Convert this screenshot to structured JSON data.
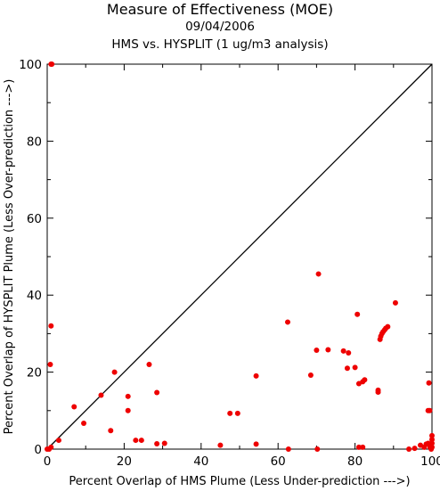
{
  "chart_data": {
    "type": "scatter",
    "title": "Measure of Effectiveness (MOE)",
    "subtitle": "09/04/2006",
    "subtitle2": "HMS vs. HYSPLIT  (1 ug/m3 analysis)",
    "xlabel": "Percent Overlap of HMS Plume (Less Under-prediction --->)",
    "ylabel": "Percent Overlap of HYSPLIT Plume (Less Over-prediction --->)",
    "xlim": [
      0,
      100
    ],
    "ylim": [
      0,
      100
    ],
    "xticks": [
      "0",
      "20",
      "40",
      "60",
      "80",
      "100"
    ],
    "yticks": [
      "0",
      "20",
      "40",
      "60",
      "80",
      "100"
    ],
    "grid": false,
    "reference_line": "y = x",
    "point_color": "#ee0000",
    "series": [
      {
        "points": [
          [
            1.0,
            100.0
          ],
          [
            1.2,
            100.0
          ],
          [
            1.0,
            32.0
          ],
          [
            0.8,
            22.0
          ],
          [
            0.0,
            0.0
          ],
          [
            0.5,
            0.0
          ],
          [
            1.0,
            0.5
          ],
          [
            3.0,
            2.3
          ],
          [
            7.0,
            11.0
          ],
          [
            9.5,
            6.7
          ],
          [
            14.0,
            14.0
          ],
          [
            16.5,
            4.8
          ],
          [
            17.5,
            20.0
          ],
          [
            21.0,
            13.7
          ],
          [
            21.0,
            10.0
          ],
          [
            23.0,
            2.3
          ],
          [
            24.5,
            2.3
          ],
          [
            26.5,
            22.0
          ],
          [
            28.5,
            14.7
          ],
          [
            28.5,
            1.4
          ],
          [
            30.5,
            1.5
          ],
          [
            45.0,
            1.0
          ],
          [
            47.5,
            9.3
          ],
          [
            49.5,
            9.3
          ],
          [
            54.3,
            19.0
          ],
          [
            54.3,
            1.3
          ],
          [
            62.5,
            33.0
          ],
          [
            62.7,
            0.0
          ],
          [
            68.5,
            19.2
          ],
          [
            70.0,
            25.7
          ],
          [
            70.2,
            0.0
          ],
          [
            70.5,
            45.5
          ],
          [
            73.0,
            25.8
          ],
          [
            77.0,
            25.5
          ],
          [
            78.0,
            21.0
          ],
          [
            78.3,
            25.0
          ],
          [
            80.0,
            21.2
          ],
          [
            80.6,
            35.0
          ],
          [
            81.0,
            17.0
          ],
          [
            81.0,
            0.5
          ],
          [
            82.0,
            17.5
          ],
          [
            82.0,
            0.5
          ],
          [
            82.5,
            18.0
          ],
          [
            86.0,
            15.3
          ],
          [
            86.0,
            14.8
          ],
          [
            86.5,
            28.5
          ],
          [
            86.7,
            29.3
          ],
          [
            87.0,
            30.0
          ],
          [
            87.3,
            30.5
          ],
          [
            87.7,
            31.0
          ],
          [
            88.0,
            31.4
          ],
          [
            88.5,
            31.8
          ],
          [
            90.5,
            38.0
          ],
          [
            94.0,
            0.0
          ],
          [
            95.5,
            0.2
          ],
          [
            97.0,
            1.0
          ],
          [
            98.0,
            0.5
          ],
          [
            98.5,
            1.3
          ],
          [
            99.0,
            1.5
          ],
          [
            99.0,
            10.0
          ],
          [
            99.2,
            17.2
          ],
          [
            99.4,
            10.0
          ],
          [
            99.5,
            0.5
          ],
          [
            100.0,
            3.5
          ],
          [
            100.0,
            2.5
          ],
          [
            100.0,
            1.5
          ],
          [
            100.0,
            0.5
          ],
          [
            99.8,
            0.0
          ]
        ]
      }
    ]
  }
}
